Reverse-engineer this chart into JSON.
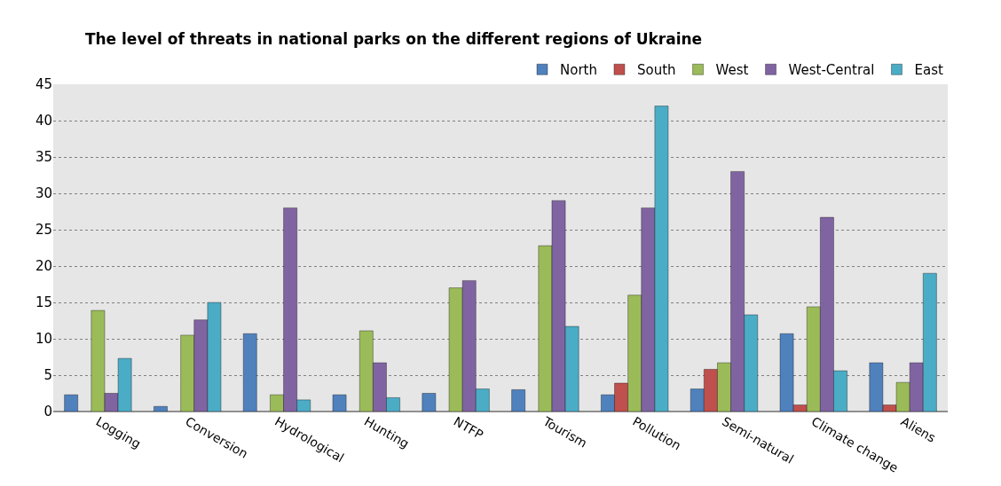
{
  "chart_data": {
    "type": "bar",
    "title": "The level of threats in national parks on the different regions of Ukraine",
    "categories": [
      "Logging",
      "Conversion",
      "Hydrological",
      "Hunting",
      "NTFP",
      "Tourism",
      "Pollution",
      "Semi-natural",
      "Climate change",
      "Aliens"
    ],
    "series": [
      {
        "name": "North",
        "color": "#4f81bd",
        "values": [
          2.3,
          0.7,
          10.7,
          2.3,
          2.5,
          3.0,
          2.3,
          3.1,
          10.7,
          6.7
        ]
      },
      {
        "name": "South",
        "color": "#c0504d",
        "values": [
          null,
          null,
          null,
          null,
          null,
          null,
          3.9,
          5.8,
          0.9,
          0.9
        ]
      },
      {
        "name": "West",
        "color": "#9bbb59",
        "values": [
          13.9,
          10.5,
          2.3,
          11.1,
          17,
          22.8,
          16,
          6.7,
          14.4,
          4.0
        ]
      },
      {
        "name": "West-Central",
        "color": "#8064a2",
        "values": [
          2.5,
          12.6,
          28,
          6.7,
          18,
          29,
          28,
          33,
          26.7,
          6.7
        ]
      },
      {
        "name": "East",
        "color": "#4bacc6",
        "values": [
          7.3,
          15,
          1.6,
          1.9,
          3.1,
          11.7,
          42,
          13.3,
          5.6,
          19
        ]
      }
    ],
    "ylim": [
      0,
      45
    ],
    "yticks": [
      0,
      5,
      10,
      15,
      20,
      25,
      30,
      35,
      40,
      45
    ],
    "grid": "y",
    "legend": "top right"
  }
}
